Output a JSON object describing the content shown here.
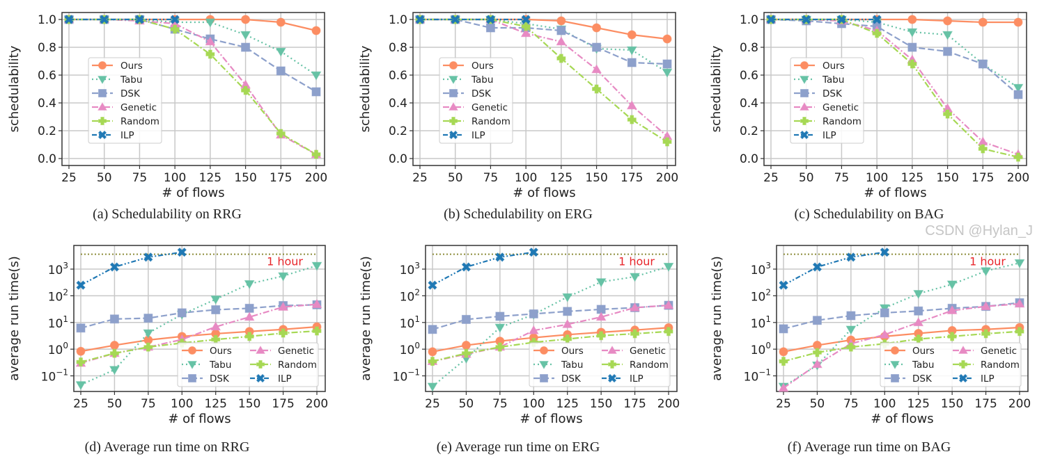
{
  "chart_data": [
    {
      "id": "a",
      "type": "line",
      "caption": "(a) Schedulability on RRG",
      "xlabel": "# of flows",
      "ylabel": "schedulability",
      "yscale": "linear",
      "ylim": [
        0,
        1.05
      ],
      "grid": true,
      "legend": "center-left",
      "x": [
        25,
        50,
        75,
        100,
        125,
        150,
        175,
        200
      ],
      "yticks": [
        "0.0",
        "0.2",
        "0.4",
        "0.6",
        "0.8",
        "1.0"
      ],
      "series": [
        {
          "name": "Ours",
          "values": [
            1,
            1,
            1,
            1,
            1,
            1,
            0.98,
            0.92
          ]
        },
        {
          "name": "Tabu",
          "values": [
            1,
            1,
            1,
            0.98,
            0.98,
            0.89,
            0.77,
            0.6
          ]
        },
        {
          "name": "DSK",
          "values": [
            1,
            1,
            1,
            0.93,
            0.86,
            0.8,
            0.63,
            0.48
          ]
        },
        {
          "name": "Genetic",
          "values": [
            1,
            1,
            0.99,
            0.97,
            0.84,
            0.53,
            0.17,
            0.03
          ]
        },
        {
          "name": "Random",
          "values": [
            1,
            1,
            1,
            0.93,
            0.75,
            0.49,
            0.18,
            0.03
          ]
        },
        {
          "name": "ILP",
          "values": [
            1,
            1,
            1,
            1,
            null,
            null,
            null,
            null
          ]
        }
      ]
    },
    {
      "id": "b",
      "type": "line",
      "caption": "(b) Schedulability on ERG",
      "xlabel": "# of flows",
      "ylabel": "schedulability",
      "yscale": "linear",
      "ylim": [
        0,
        1.05
      ],
      "grid": true,
      "legend": "center-left",
      "x": [
        25,
        50,
        75,
        100,
        125,
        150,
        175,
        200
      ],
      "yticks": [
        "0.0",
        "0.2",
        "0.4",
        "0.6",
        "0.8",
        "1.0"
      ],
      "series": [
        {
          "name": "Ours",
          "values": [
            1,
            1,
            1,
            1,
            0.99,
            0.94,
            0.89,
            0.86
          ]
        },
        {
          "name": "Tabu",
          "values": [
            1,
            1,
            1,
            0.97,
            0.93,
            0.79,
            0.78,
            0.62
          ]
        },
        {
          "name": "DSK",
          "values": [
            1,
            1,
            0.94,
            0.94,
            0.92,
            0.8,
            0.69,
            0.68
          ]
        },
        {
          "name": "Genetic",
          "values": [
            1,
            1,
            1,
            0.9,
            0.84,
            0.64,
            0.38,
            0.16
          ]
        },
        {
          "name": "Random",
          "values": [
            1,
            1,
            1,
            0.95,
            0.72,
            0.5,
            0.28,
            0.12
          ]
        },
        {
          "name": "ILP",
          "values": [
            1,
            1,
            1,
            1,
            null,
            null,
            null,
            null
          ]
        }
      ]
    },
    {
      "id": "c",
      "type": "line",
      "caption": "(c) Schedulability on BAG",
      "xlabel": "# of flows",
      "ylabel": "schedulability",
      "yscale": "linear",
      "ylim": [
        0,
        1.05
      ],
      "grid": true,
      "legend": "center-left",
      "x": [
        25,
        50,
        75,
        100,
        125,
        150,
        175,
        200
      ],
      "yticks": [
        "0.0",
        "0.2",
        "0.4",
        "0.6",
        "0.8",
        "1.0"
      ],
      "series": [
        {
          "name": "Ours",
          "values": [
            1,
            1,
            1,
            1,
            1,
            0.99,
            0.98,
            0.98
          ]
        },
        {
          "name": "Tabu",
          "values": [
            1,
            1,
            1,
            0.98,
            0.91,
            0.89,
            0.68,
            0.51
          ]
        },
        {
          "name": "DSK",
          "values": [
            1,
            0.99,
            0.97,
            0.95,
            0.8,
            0.77,
            0.68,
            0.46
          ]
        },
        {
          "name": "Genetic",
          "values": [
            1,
            1,
            0.99,
            0.92,
            0.71,
            0.36,
            0.12,
            0.03
          ]
        },
        {
          "name": "Random",
          "values": [
            1,
            1,
            1,
            0.9,
            0.68,
            0.32,
            0.07,
            0.01
          ]
        },
        {
          "name": "ILP",
          "values": [
            1,
            1,
            1,
            1,
            null,
            null,
            null,
            null
          ]
        }
      ]
    },
    {
      "id": "d",
      "type": "line",
      "caption": "(d) Average run time on RRG",
      "xlabel": "# of flows",
      "ylabel": "average run time(s)",
      "yscale": "log",
      "ylim": [
        0.026,
        7700
      ],
      "grid": true,
      "legend": "lower-right",
      "x": [
        25,
        50,
        75,
        100,
        125,
        150,
        175,
        200
      ],
      "yticks": [
        "10^-1",
        "10^0",
        "10^1",
        "10^2",
        "10^3"
      ],
      "hline": {
        "value": 3600,
        "label": "1 hour"
      },
      "series": [
        {
          "name": "Ours",
          "values": [
            0.83,
            1.4,
            2.2,
            3.0,
            3.8,
            4.6,
            5.5,
            6.9
          ]
        },
        {
          "name": "Tabu",
          "values": [
            0.046,
            0.17,
            4,
            20,
            74,
            280,
            550,
            1350
          ]
        },
        {
          "name": "DSK",
          "values": [
            6.2,
            13.5,
            14.5,
            23,
            30,
            34,
            43,
            46
          ]
        },
        {
          "name": "Genetic",
          "values": [
            0.3,
            0.7,
            1.2,
            2.3,
            6.9,
            16,
            38,
            48
          ]
        },
        {
          "name": "Random",
          "values": [
            0.33,
            0.7,
            1.2,
            1.7,
            2.3,
            3.0,
            4.0,
            4.8
          ]
        },
        {
          "name": "ILP",
          "values": [
            250,
            1200,
            2800,
            4300,
            null,
            null,
            null,
            null
          ]
        }
      ]
    },
    {
      "id": "e",
      "type": "line",
      "caption": "(e) Average run time on ERG",
      "xlabel": "# of flows",
      "ylabel": "average run time(s)",
      "yscale": "log",
      "ylim": [
        0.026,
        7700
      ],
      "grid": true,
      "legend": "lower-right",
      "x": [
        25,
        50,
        75,
        100,
        125,
        150,
        175,
        200
      ],
      "yticks": [
        "10^-1",
        "10^0",
        "10^1",
        "10^2",
        "10^3"
      ],
      "hline": {
        "value": 3600,
        "label": "1 hour"
      },
      "series": [
        {
          "name": "Ours",
          "values": [
            0.8,
            1.4,
            2.0,
            2.7,
            3.5,
            4.3,
            5.2,
            6.4
          ]
        },
        {
          "name": "Tabu",
          "values": [
            0.04,
            0.45,
            6.5,
            20,
            90,
            330,
            520,
            1250
          ]
        },
        {
          "name": "DSK",
          "values": [
            5.5,
            13,
            17,
            21,
            26,
            31,
            36,
            44
          ]
        },
        {
          "name": "Genetic",
          "values": [
            0.35,
            0.65,
            1.2,
            5,
            8.5,
            16,
            36,
            44
          ]
        },
        {
          "name": "Random",
          "values": [
            0.35,
            0.7,
            1.2,
            1.8,
            2.4,
            3.2,
            3.8,
            4.6
          ]
        },
        {
          "name": "ILP",
          "values": [
            250,
            1200,
            2800,
            4300,
            null,
            null,
            null,
            null
          ]
        }
      ]
    },
    {
      "id": "f",
      "type": "line",
      "caption": "(f) Average run time on BAG",
      "xlabel": "# of flows",
      "ylabel": "average run time(s)",
      "yscale": "log",
      "ylim": [
        0.026,
        7700
      ],
      "grid": true,
      "legend": "lower-right",
      "x": [
        25,
        50,
        75,
        100,
        125,
        150,
        175,
        200
      ],
      "yticks": [
        "10^-1",
        "10^0",
        "10^1",
        "10^2",
        "10^3"
      ],
      "hline": {
        "value": 3600,
        "label": "1 hour"
      },
      "series": [
        {
          "name": "Ours",
          "values": [
            0.8,
            1.4,
            2.2,
            3.0,
            3.9,
            5.0,
            5.5,
            6.5
          ]
        },
        {
          "name": "Tabu",
          "values": [
            0.04,
            0.25,
            5.5,
            35,
            120,
            270,
            850,
            1700
          ]
        },
        {
          "name": "DSK",
          "values": [
            5.8,
            12,
            18,
            23,
            27,
            34,
            40,
            55
          ]
        },
        {
          "name": "Genetic",
          "values": [
            0.035,
            0.27,
            1.6,
            3.5,
            10,
            28,
            40,
            50
          ]
        },
        {
          "name": "Random",
          "values": [
            0.35,
            0.75,
            1.2,
            1.6,
            2.4,
            3.0,
            3.8,
            4.6
          ]
        },
        {
          "name": "ILP",
          "values": [
            250,
            1200,
            2800,
            4300,
            null,
            null,
            null,
            null
          ]
        }
      ]
    }
  ],
  "series_style": {
    "Ours": {
      "color": "#fc8d62",
      "marker": "circle",
      "line": "solid"
    },
    "Tabu": {
      "color": "#66c2a5",
      "marker": "triangle-down",
      "line": "dotted"
    },
    "DSK": {
      "color": "#8da0cb",
      "marker": "square",
      "line": "dashed"
    },
    "Genetic": {
      "color": "#e78ac3",
      "marker": "triangle-up",
      "line": "dashdot"
    },
    "Random": {
      "color": "#a6d854",
      "marker": "plus",
      "line": "dashdot"
    },
    "ILP": {
      "color": "#1f78b4",
      "marker": "x",
      "line": "dashdotdot"
    }
  },
  "hline_color": "#8c8c3a",
  "watermark": "CSDN @Hylan_J"
}
